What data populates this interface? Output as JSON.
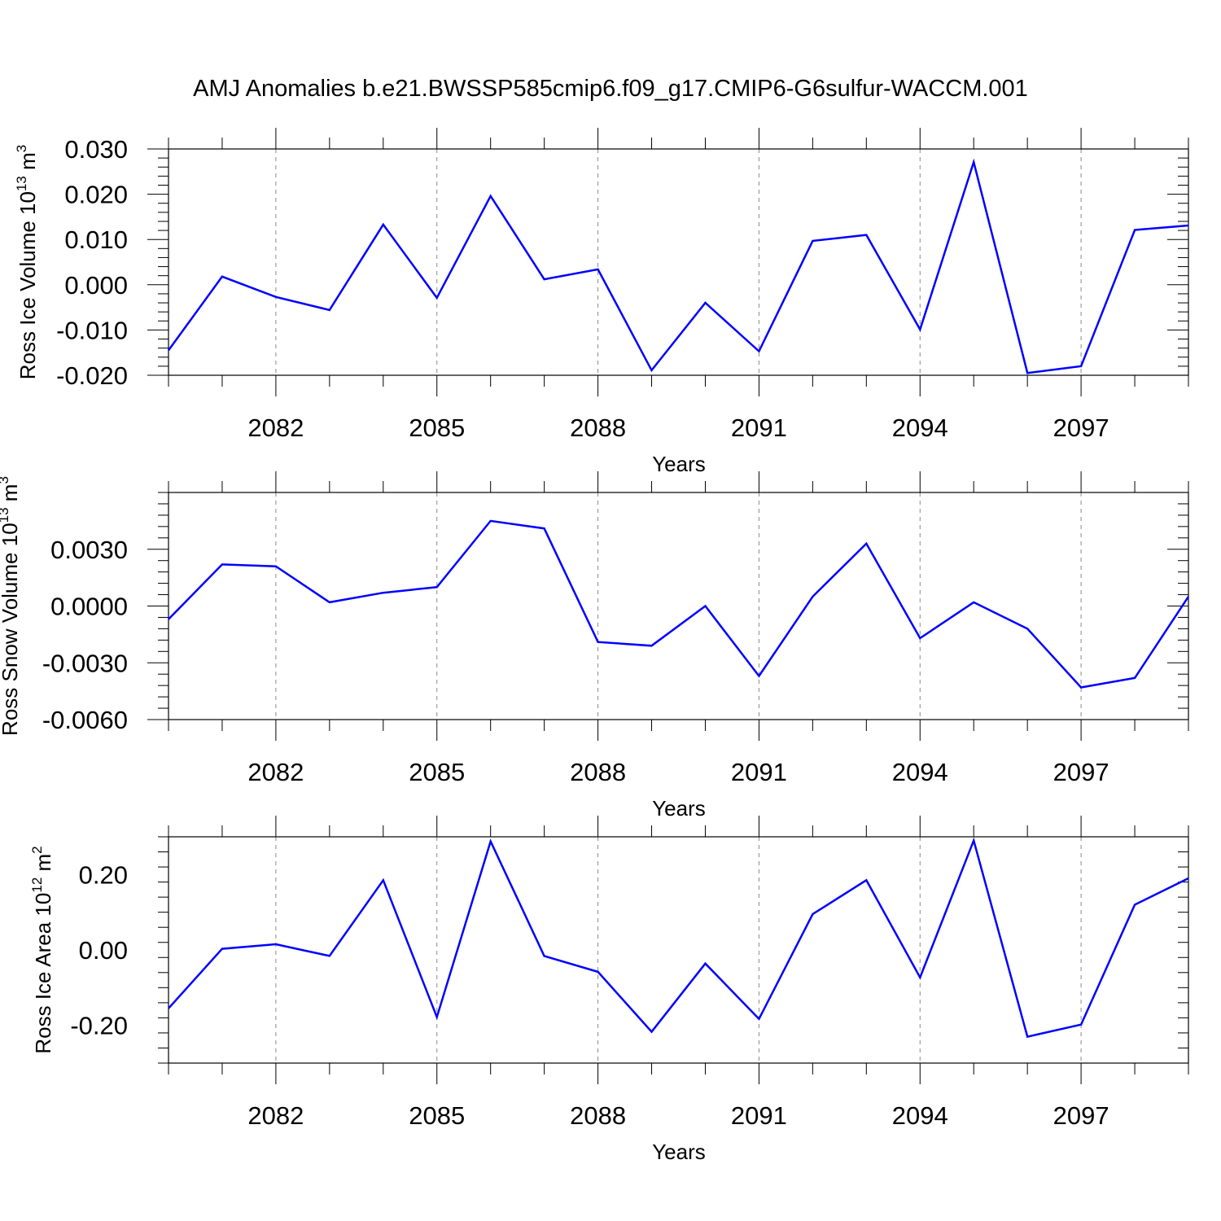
{
  "title": "AMJ Anomalies b.e21.BWSSP585cmip6.f09_g17.CMIP6-G6sulfur-WACCM.001",
  "line_color": "#0000ff",
  "chart_data": [
    {
      "type": "line",
      "xlabel": "Years",
      "ylabel": {
        "text": "Ross Ice Volume 10",
        "sup": "13",
        "unit": " m",
        "unit_sup": "3"
      },
      "xlim": [
        2080,
        2099
      ],
      "ylim": [
        -0.02,
        0.03
      ],
      "xticks": [
        2082,
        2085,
        2088,
        2091,
        2094,
        2097
      ],
      "xtick_labels": [
        "2082",
        "2085",
        "2088",
        "2091",
        "2094",
        "2097"
      ],
      "yticks": [
        -0.02,
        -0.01,
        0.0,
        0.01,
        0.02,
        0.03
      ],
      "ytick_labels": [
        "-0.020",
        "-0.010",
        "0.000",
        "0.010",
        "0.020",
        "0.030"
      ],
      "x": [
        2080,
        2081,
        2082,
        2083,
        2084,
        2085,
        2086,
        2087,
        2088,
        2089,
        2090,
        2091,
        2092,
        2093,
        2094,
        2095,
        2096,
        2097,
        2098,
        2099
      ],
      "series": [
        {
          "values": [
            -0.0145,
            0.0018,
            -0.0027,
            -0.0056,
            0.0133,
            -0.0029,
            0.0196,
            0.0012,
            0.0034,
            -0.0189,
            -0.004,
            -0.0147,
            0.0097,
            0.011,
            -0.0099,
            0.0271,
            -0.0195,
            -0.018,
            0.0121,
            0.0131
          ]
        }
      ]
    },
    {
      "type": "line",
      "xlabel": "Years",
      "ylabel": {
        "text": "Ross Snow Volume 10",
        "sup": "13",
        "unit": " m",
        "unit_sup": "3"
      },
      "xlim": [
        2080,
        2099
      ],
      "ylim": [
        -0.006,
        0.006
      ],
      "xticks": [
        2082,
        2085,
        2088,
        2091,
        2094,
        2097
      ],
      "xtick_labels": [
        "2082",
        "2085",
        "2088",
        "2091",
        "2094",
        "2097"
      ],
      "yticks": [
        -0.006,
        -0.003,
        0.0,
        0.003
      ],
      "ytick_labels": [
        "-0.0060",
        "-0.0030",
        "0.0000",
        "0.0030"
      ],
      "x": [
        2080,
        2081,
        2082,
        2083,
        2084,
        2085,
        2086,
        2087,
        2088,
        2089,
        2090,
        2091,
        2092,
        2093,
        2094,
        2095,
        2096,
        2097,
        2098,
        2099
      ],
      "series": [
        {
          "values": [
            -0.0007,
            0.0022,
            0.0021,
            0.0002,
            0.0007,
            0.001,
            0.0045,
            0.0041,
            -0.0019,
            -0.0021,
            0.0,
            -0.0037,
            0.0005,
            0.0033,
            -0.0017,
            0.0002,
            -0.0012,
            -0.0043,
            -0.0038,
            0.0005
          ]
        }
      ]
    },
    {
      "type": "line",
      "xlabel": "Years",
      "ylabel": {
        "text": "Ross Ice Area 10",
        "sup": "12",
        "unit": " m",
        "unit_sup": "2"
      },
      "xlim": [
        2080,
        2099
      ],
      "ylim": [
        -0.3,
        0.3
      ],
      "xticks": [
        2082,
        2085,
        2088,
        2091,
        2094,
        2097
      ],
      "xtick_labels": [
        "2082",
        "2085",
        "2088",
        "2091",
        "2094",
        "2097"
      ],
      "yticks": [
        -0.2,
        0.0,
        0.2
      ],
      "ytick_labels": [
        "-0.20",
        "0.00",
        "0.20"
      ],
      "x": [
        2080,
        2081,
        2082,
        2083,
        2084,
        2085,
        2086,
        2087,
        2088,
        2089,
        2090,
        2091,
        2092,
        2093,
        2094,
        2095,
        2096,
        2097,
        2098,
        2099
      ],
      "series": [
        {
          "values": [
            -0.155,
            0.003,
            0.015,
            -0.016,
            0.185,
            -0.178,
            0.288,
            -0.016,
            -0.058,
            -0.217,
            -0.036,
            -0.183,
            0.095,
            0.185,
            -0.073,
            0.29,
            -0.23,
            -0.198,
            0.12,
            0.19
          ]
        }
      ]
    }
  ]
}
